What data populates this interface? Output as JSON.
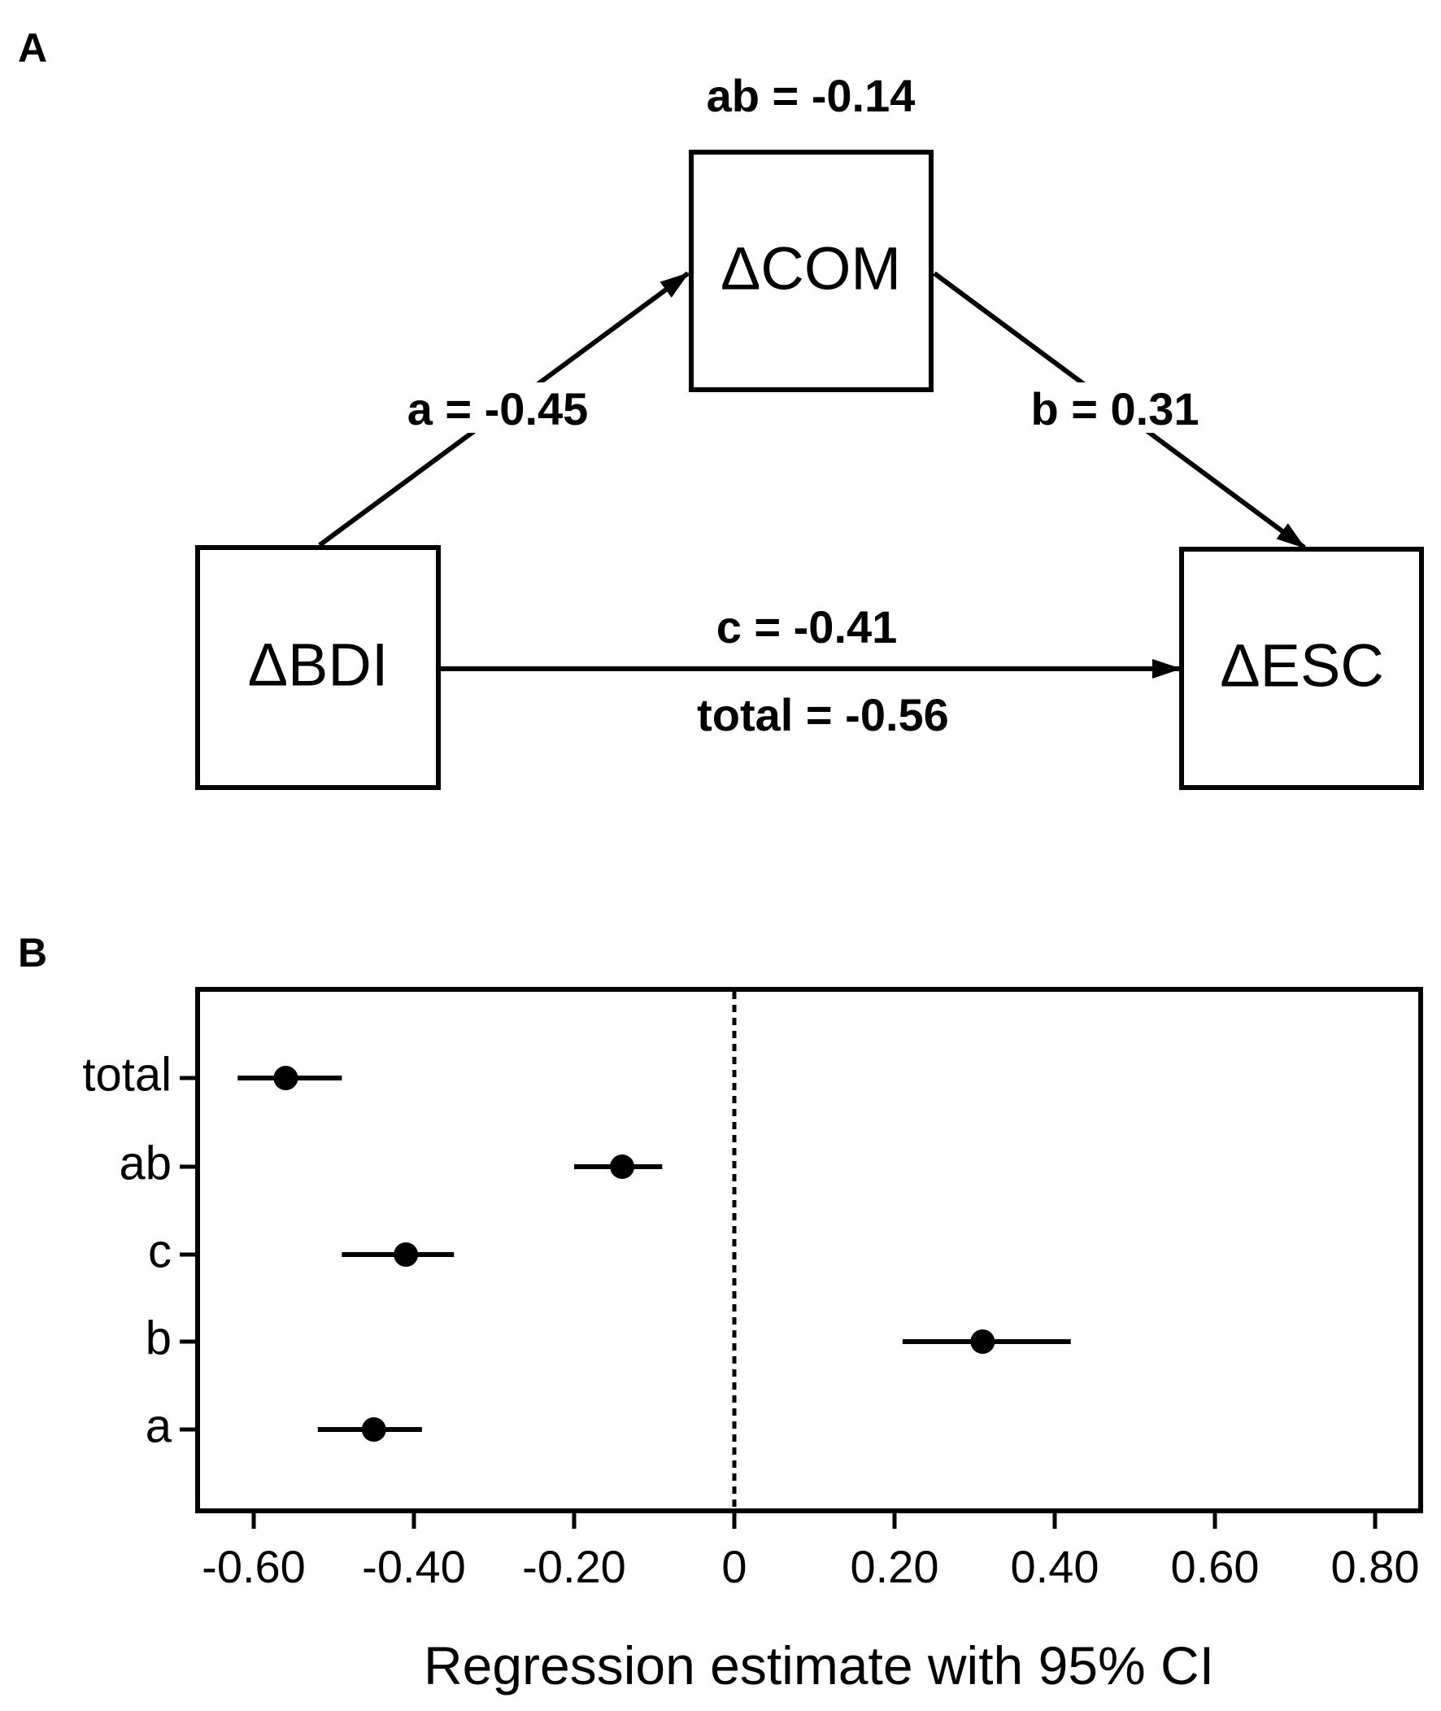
{
  "panel_a": {
    "letter": "A",
    "nodes": {
      "predictor": "ΔBDI",
      "mediator": "ΔCOM",
      "outcome": "ΔESC"
    },
    "paths": {
      "ab": "ab = -0.14",
      "a": "a = -0.45",
      "b": "b = 0.31",
      "c": "c = -0.41",
      "total": "total = -0.56"
    }
  },
  "panel_b": {
    "letter": "B"
  },
  "chart_data": {
    "type": "scatter",
    "subtype": "forest-plot",
    "title": "",
    "xlabel": "Regression estimate with 95% CI",
    "ylabel": "",
    "xlim": [
      -0.63,
      0.89
    ],
    "xticks": [
      -0.6,
      -0.4,
      -0.2,
      0,
      0.2,
      0.4,
      0.6,
      0.8
    ],
    "xtick_labels": [
      "-0.60",
      "-0.40",
      "-0.20",
      "0",
      "0.20",
      "0.40",
      "0.60",
      "0.80"
    ],
    "reference_line": {
      "x": 0,
      "style": "dashed"
    },
    "grid": false,
    "legend": "none",
    "categories": [
      "total",
      "ab",
      "c",
      "b",
      "a"
    ],
    "estimates": [
      -0.56,
      -0.14,
      -0.41,
      0.31,
      -0.45
    ],
    "ci_lower": [
      -0.62,
      -0.2,
      -0.49,
      0.21,
      -0.52
    ],
    "ci_upper": [
      -0.49,
      -0.09,
      -0.35,
      0.42,
      -0.39
    ]
  }
}
